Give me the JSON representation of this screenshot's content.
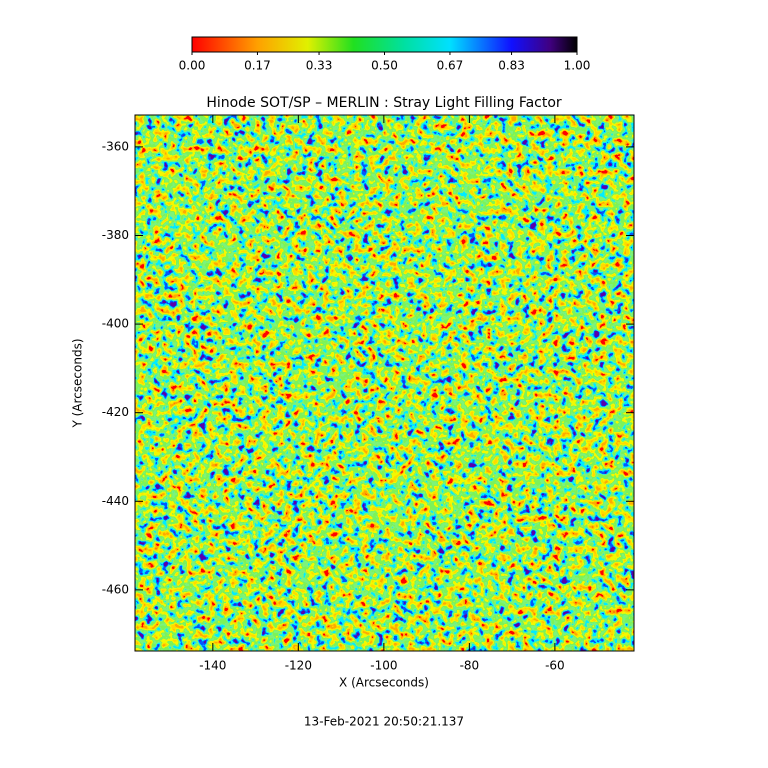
{
  "chart_data": {
    "type": "image",
    "title": "Hinode SOT/SP – MERLIN : Stray Light Filling Factor",
    "x_label": "X (Arcseconds)",
    "y_label": "Y (Arcseconds)",
    "xlim": [
      -158.2,
      -41.5
    ],
    "ylim": [
      -473.8,
      -352.8
    ],
    "xticks": [
      -140,
      -120,
      -100,
      -80,
      -60
    ],
    "yticks": [
      -360,
      -380,
      -400,
      -420,
      -440,
      -460
    ],
    "colorbar": {
      "lim": [
        0,
        1
      ],
      "ticks": [
        {
          "value": 0,
          "label": "0.00"
        },
        {
          "value": 0.17,
          "label": "0.17"
        },
        {
          "value": 0.33,
          "label": "0.33"
        },
        {
          "value": 0.5,
          "label": "0.50"
        },
        {
          "value": 0.67,
          "label": "0.67"
        },
        {
          "value": 0.83,
          "label": "0.83"
        },
        {
          "value": 1,
          "label": "1.00"
        }
      ]
    },
    "footer": "13-Feb-2021 20:50:21.137"
  }
}
